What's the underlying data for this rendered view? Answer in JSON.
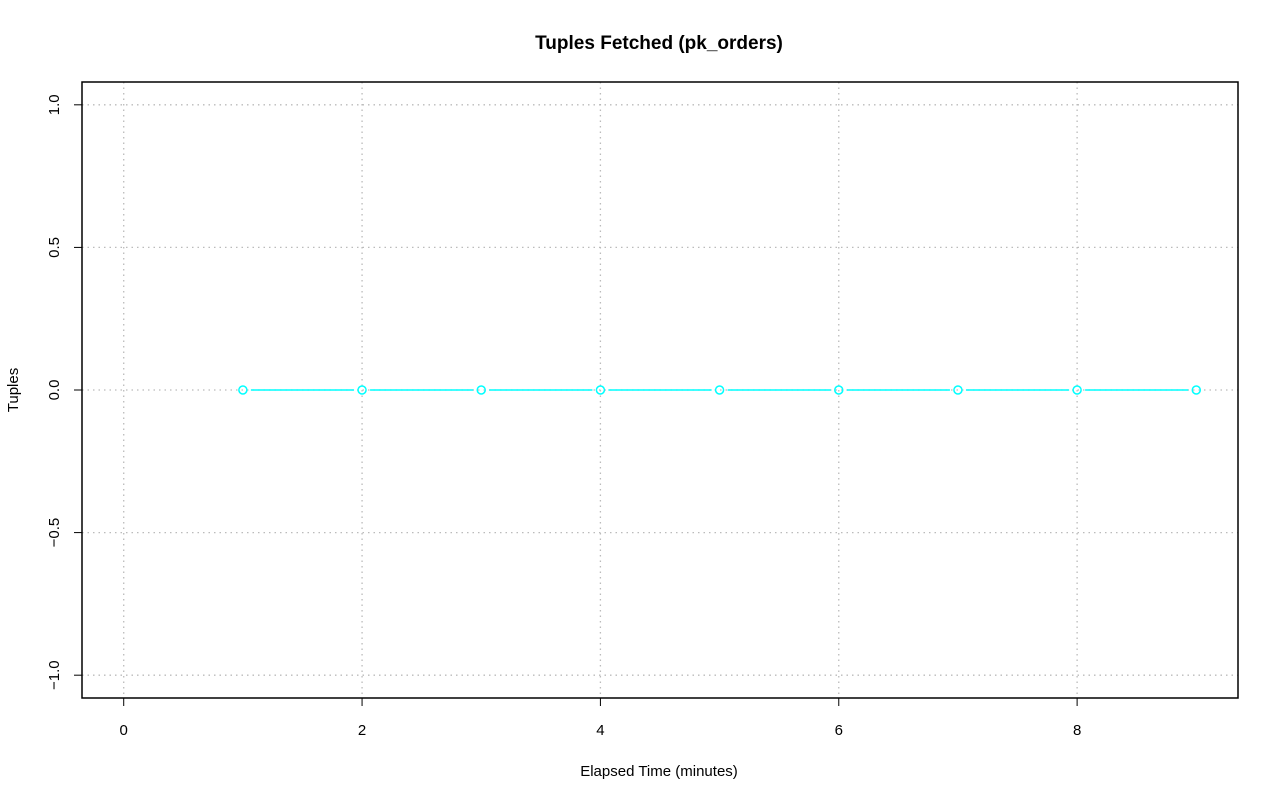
{
  "chart_data": {
    "type": "line",
    "title": "Tuples Fetched (pk_orders)",
    "xlabel": "Elapsed Time (minutes)",
    "ylabel": "Tuples",
    "xlim": [
      -0.35,
      9.35
    ],
    "ylim": [
      -1.08,
      1.08
    ],
    "x_ticks": [
      0,
      2,
      4,
      6,
      8
    ],
    "x_tick_labels": [
      "0",
      "2",
      "4",
      "6",
      "8"
    ],
    "y_ticks": [
      -1.0,
      -0.5,
      0.0,
      0.5,
      1.0
    ],
    "y_tick_labels": [
      "−1.0",
      "−0.5",
      "0.0",
      "0.5",
      "1.0"
    ],
    "grid": true,
    "series": [
      {
        "color": "#00FFFF",
        "x": [
          1,
          2,
          3,
          4,
          5,
          6,
          7,
          8,
          9
        ],
        "y": [
          0,
          0,
          0,
          0,
          0,
          0,
          0,
          0,
          0
        ]
      }
    ]
  }
}
